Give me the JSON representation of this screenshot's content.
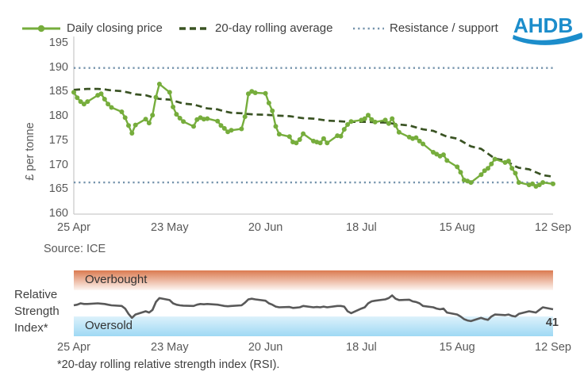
{
  "header": {
    "legend": [
      {
        "label": "Daily closing price",
        "swatch": "line-with-marker",
        "color": "#76AD3C"
      },
      {
        "label": "20-day rolling average",
        "swatch": "dashed-line",
        "color": "#3A5323"
      },
      {
        "label": "Resistance / support",
        "swatch": "dotted-line",
        "color": "#7593AC"
      }
    ],
    "logo": "AHDB",
    "logo_color": "#1C8DCB"
  },
  "chart_data": [
    {
      "type": "line",
      "title": "",
      "xlabel": "",
      "ylabel": "£ per tonne",
      "ylim": [
        160,
        195
      ],
      "yticks": [
        195,
        190,
        185,
        180,
        175,
        170,
        165,
        160
      ],
      "xticklabels": [
        "25 Apr",
        "23 May",
        "20 Jun",
        "18 Jul",
        "15 Aug",
        "12 Sep"
      ],
      "xtick_days": [
        0,
        28,
        56,
        84,
        112,
        140
      ],
      "x_mode": "weekday-points-over-140-days",
      "grid": "off",
      "hline_color": "#7593AC",
      "hlines": [
        {
          "name": "Resistance",
          "value": 190
        },
        {
          "name": "Support",
          "value": 166.5
        }
      ],
      "source": "Source: ICE",
      "series": [
        {
          "name": "Daily closing price",
          "style": "solid",
          "marker": "circle",
          "color": "#76AD3C",
          "values": [
            185.0,
            183.9,
            183.1,
            182.6,
            183.1,
            184.4,
            184.7,
            183.6,
            182.6,
            181.9,
            181.0,
            179.8,
            178.2,
            176.6,
            178.3,
            179.5,
            178.7,
            180.3,
            184.0,
            186.7,
            185.0,
            182.0,
            180.5,
            179.7,
            179.0,
            178.0,
            179.4,
            179.8,
            179.5,
            179.6,
            179.1,
            178.2,
            177.6,
            176.9,
            177.2,
            177.5,
            180.0,
            184.7,
            185.2,
            184.9,
            184.8,
            182.8,
            181.2,
            178.0,
            176.4,
            175.9,
            174.8,
            174.6,
            175.3,
            176.5,
            175.0,
            174.8,
            174.6,
            175.5,
            174.6,
            176.1,
            176.0,
            177.4,
            178.4,
            179.0,
            179.3,
            179.6,
            180.3,
            179.4,
            178.9,
            179.3,
            178.6,
            179.6,
            178.2,
            176.8,
            175.8,
            175.5,
            175.7,
            175.0,
            174.4,
            172.7,
            172.3,
            171.9,
            172.2,
            171.0,
            169.7,
            168.6,
            167.0,
            166.8,
            166.5,
            168.1,
            168.9,
            169.4,
            170.3,
            171.3,
            170.6,
            170.9,
            169.4,
            168.4,
            166.5,
            166.0,
            166.2,
            165.7,
            166.0,
            166.5,
            166.2
          ]
        },
        {
          "name": "20-day rolling average",
          "style": "dashed",
          "marker": "none",
          "color": "#3A5323",
          "values": [
            185.5,
            185.55,
            185.6,
            185.65,
            185.7,
            185.7,
            185.65,
            185.6,
            185.5,
            185.4,
            185.25,
            185.1,
            184.95,
            184.8,
            184.6,
            184.4,
            184.2,
            184.0,
            183.8,
            183.65,
            183.5,
            183.3,
            183.1,
            182.9,
            182.7,
            182.5,
            182.3,
            182.1,
            181.9,
            181.7,
            181.5,
            181.3,
            181.1,
            180.95,
            180.8,
            180.7,
            180.6,
            180.55,
            180.5,
            180.45,
            180.4,
            180.35,
            180.3,
            180.25,
            180.2,
            180.1,
            180.0,
            179.9,
            179.8,
            179.7,
            179.6,
            179.5,
            179.4,
            179.3,
            179.2,
            179.1,
            179.05,
            179.0,
            178.95,
            178.95,
            178.95,
            178.95,
            178.95,
            178.9,
            178.85,
            178.8,
            178.7,
            178.6,
            178.5,
            178.4,
            178.2,
            178.0,
            177.8,
            177.6,
            177.4,
            177.1,
            176.8,
            176.5,
            176.2,
            175.9,
            175.5,
            175.1,
            174.7,
            174.3,
            173.9,
            173.4,
            172.9,
            172.4,
            171.9,
            171.4,
            171.0,
            170.6,
            170.2,
            169.8,
            169.5,
            169.2,
            168.9,
            168.6,
            168.3,
            168.0,
            167.7
          ]
        }
      ]
    },
    {
      "type": "line",
      "title": "Relative Strength Index*",
      "ylabel_lines": [
        "Relative",
        "Strength",
        "Index*"
      ],
      "ylim": [
        0,
        100
      ],
      "grid": "off",
      "bands": [
        {
          "label": "Overbought",
          "from": 70,
          "to": 100,
          "color_top": "#DB7A50",
          "color_bottom": "#FDF6F2"
        },
        {
          "label": "Oversold",
          "from": 0,
          "to": 30,
          "color_top": "#DCF1FB",
          "color_bottom": "#9FD9F4"
        }
      ],
      "xticklabels": [
        "25 Apr",
        "23 May",
        "20 Jun",
        "18 Jul",
        "15 Aug",
        "12 Sep"
      ],
      "xtick_days": [
        0,
        28,
        56,
        84,
        112,
        140
      ],
      "last_value_label": "41",
      "footnote": "*20-day rolling relative strength index (RSI).",
      "series": [
        {
          "name": "20-day rolling RSI",
          "style": "solid",
          "marker": "none",
          "color": "#595959",
          "values": [
            47,
            48,
            50,
            49,
            49,
            50,
            49.5,
            49,
            48,
            47,
            46,
            42,
            34,
            28,
            33,
            38,
            36,
            40,
            52,
            58,
            55,
            50,
            48,
            47,
            46.5,
            46,
            48,
            49,
            48.5,
            49,
            48,
            47,
            46,
            45.5,
            46,
            47,
            51,
            56,
            57,
            56,
            54,
            50,
            48,
            45,
            44,
            44.5,
            43,
            43.5,
            44,
            46,
            44,
            44.5,
            44,
            45,
            44,
            46,
            46,
            45,
            38,
            35,
            42,
            44,
            50,
            53,
            54,
            56,
            58,
            62,
            57,
            55,
            55.5,
            53,
            52,
            50,
            46,
            44,
            42,
            41,
            42,
            36,
            33,
            30,
            26,
            24,
            23,
            28,
            26,
            25,
            30,
            33,
            32,
            33,
            31,
            30,
            34,
            38,
            37,
            36,
            40,
            44,
            41
          ]
        }
      ]
    }
  ]
}
